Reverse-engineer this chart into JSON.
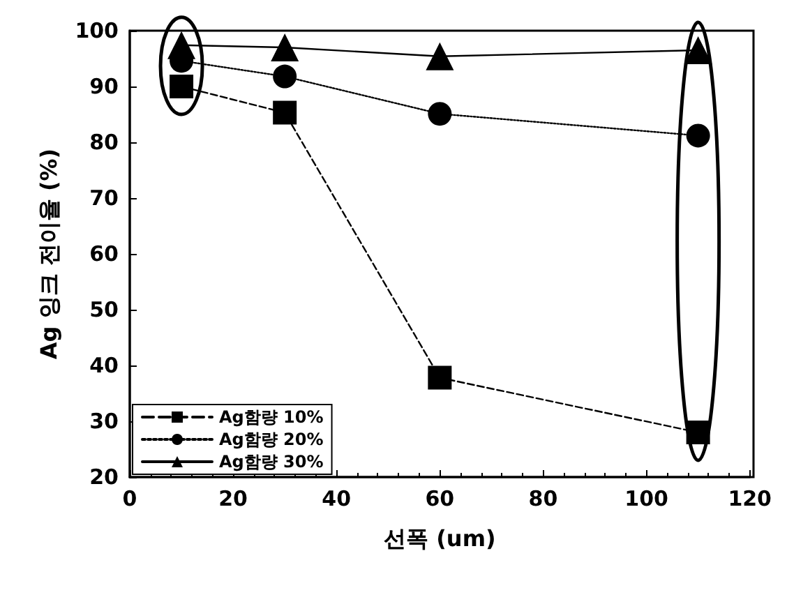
{
  "chart_data": {
    "type": "line",
    "xlabel": "선폭 (um)",
    "ylabel": "Ag 잉크 전이율 (%)",
    "x": [
      10,
      30,
      60,
      110
    ],
    "series": [
      {
        "name": "Ag함량 10%",
        "color": "#000000",
        "values": [
          90,
          85.3,
          37.8,
          28
        ],
        "marker": "square",
        "line_style": "dashed"
      },
      {
        "name": "Ag함량 20%",
        "color": "#000000",
        "values": [
          94.6,
          91.8,
          85.1,
          81.2
        ],
        "marker": "circle",
        "line_style": "dotted"
      },
      {
        "name": "Ag함량 30%",
        "color": "#000000",
        "values": [
          97.4,
          97,
          95.4,
          96.5
        ],
        "marker": "triangle",
        "line_style": "solid"
      }
    ],
    "xlim": [
      0,
      120
    ],
    "xticks": [
      0,
      20,
      40,
      60,
      80,
      100,
      120
    ],
    "ylim": [
      20,
      100
    ],
    "yticks": [
      20,
      30,
      40,
      50,
      60,
      70,
      80,
      90,
      100
    ],
    "grid": false,
    "legend": "bottom left"
  }
}
